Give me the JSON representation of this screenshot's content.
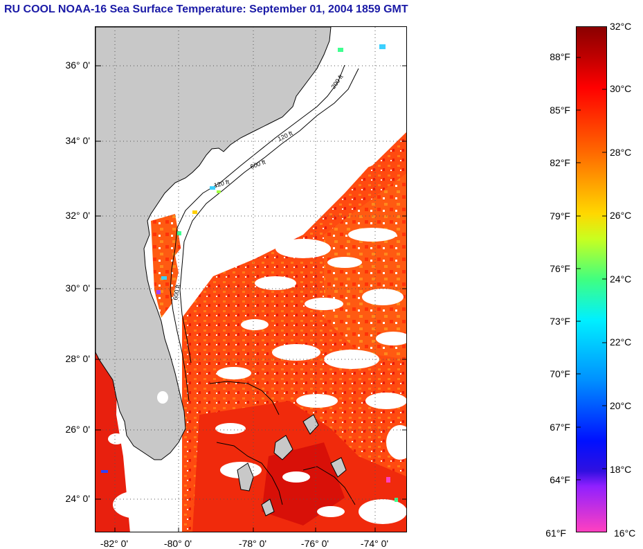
{
  "header": {
    "title": "RU COOL  NOAA-16  Sea Surface Temperature:  September 01, 2004 1859 GMT"
  },
  "map": {
    "lat_labels": [
      "36° 0'",
      "34° 0'",
      "32° 0'",
      "30° 0'",
      "28° 0'",
      "26° 0'",
      "24° 0'"
    ],
    "lon_labels": [
      "-82° 0'",
      "-80° 0'",
      "-78° 0'",
      "-76° 0'",
      "-74° 0'"
    ],
    "contour_labels": [
      "200 ft",
      "120 ft",
      "600 ft",
      "120 ft",
      "600 ft"
    ],
    "colors": {
      "land": "#c8c8c8",
      "cloud": "#ffffff",
      "sst_warm": "#ff3a0a",
      "sst_orange": "#ff6a10",
      "sst_red": "#e8160c"
    }
  },
  "colorbar": {
    "fahrenheit_labels": [
      "88°F",
      "85°F",
      "82°F",
      "79°F",
      "76°F",
      "73°F",
      "70°F",
      "67°F",
      "64°F",
      "61°F"
    ],
    "celsius_labels": [
      "32°C",
      "30°C",
      "28°C",
      "26°C",
      "24°C",
      "22°C",
      "20°C",
      "18°C",
      "16°C"
    ],
    "min_c": 16,
    "max_c": 32
  }
}
